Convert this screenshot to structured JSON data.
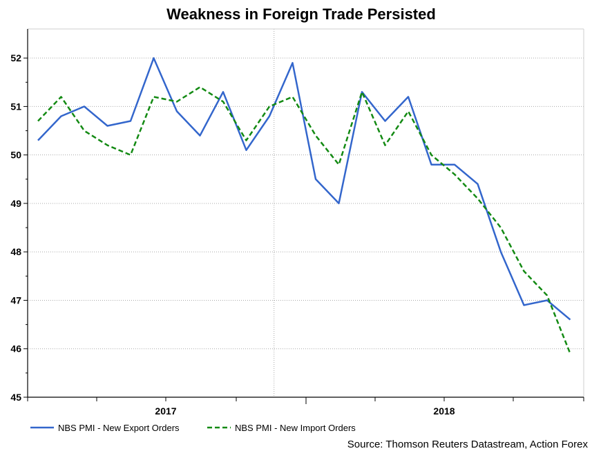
{
  "chart_data": {
    "type": "line",
    "title": "Weakness in Foreign Trade Persisted",
    "x": [
      "2016-09",
      "2016-10",
      "2016-11",
      "2016-12",
      "2017-01",
      "2017-02",
      "2017-03",
      "2017-04",
      "2017-05",
      "2017-06",
      "2017-07",
      "2017-08",
      "2017-09",
      "2017-10",
      "2017-11",
      "2017-12",
      "2018-01",
      "2018-02",
      "2018-03",
      "2018-04",
      "2018-05",
      "2018-06",
      "2018-07",
      "2018-08"
    ],
    "series": [
      {
        "name": "NBS PMI - New Export Orders",
        "color": "#3366cc",
        "dash": "solid",
        "values": [
          50.3,
          50.8,
          51.0,
          50.6,
          50.7,
          52.0,
          50.9,
          50.4,
          51.3,
          50.1,
          50.8,
          51.9,
          49.5,
          49.0,
          51.3,
          50.7,
          51.2,
          49.8,
          49.8,
          49.4,
          48.0,
          46.9,
          47.0,
          46.6
        ]
      },
      {
        "name": "NBS PMI - New Import Orders",
        "color": "#138a13",
        "dash": "dashed",
        "values": [
          50.7,
          51.2,
          50.5,
          50.2,
          50.0,
          51.2,
          51.1,
          51.4,
          51.1,
          50.3,
          51.0,
          51.2,
          50.4,
          49.8,
          51.3,
          50.2,
          50.9,
          50.0,
          49.6,
          49.1,
          48.5,
          47.6,
          47.1,
          45.9
        ]
      }
    ],
    "xtick_labels": [
      "2017",
      "2018"
    ],
    "yticks": [
      45,
      46,
      47,
      48,
      49,
      50,
      51,
      52
    ],
    "ylim": [
      45,
      52.6
    ],
    "grid": true,
    "legend": "bottom-left",
    "source": "Source: Thomson Reuters Datastream, Action Forex"
  }
}
